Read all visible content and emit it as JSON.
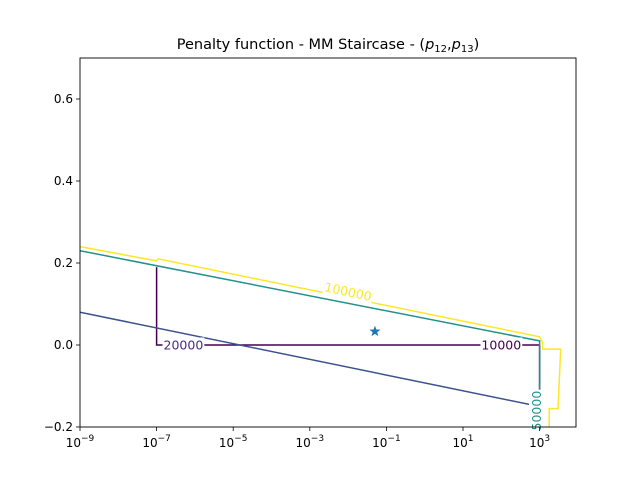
{
  "chart_data": {
    "type": "line",
    "subtype": "contour",
    "title": {
      "prefix": "Penalty function - MM Staircase - (",
      "var1": "p",
      "var1_sub": "12",
      "separator": ",",
      "var2": "p",
      "var2_sub": "13",
      "suffix": ")"
    },
    "xlabel": "",
    "ylabel": "",
    "xscale": "log",
    "xlim_exp": [
      -9,
      3.95
    ],
    "ylim": [
      -0.2,
      0.7
    ],
    "x_ticks": [
      {
        "base": "10",
        "exp": "−9",
        "value": -9
      },
      {
        "base": "10",
        "exp": "−7",
        "value": -7
      },
      {
        "base": "10",
        "exp": "−5",
        "value": -5
      },
      {
        "base": "10",
        "exp": "−3",
        "value": -3
      },
      {
        "base": "10",
        "exp": "−1",
        "value": -1
      },
      {
        "base": "10",
        "exp": "1",
        "value": 1
      },
      {
        "base": "10",
        "exp": "3",
        "value": 3
      }
    ],
    "y_ticks": [
      {
        "label": "−0.2",
        "value": -0.2
      },
      {
        "label": "0.0",
        "value": 0.0
      },
      {
        "label": "0.2",
        "value": 0.2
      },
      {
        "label": "0.4",
        "value": 0.4
      },
      {
        "label": "0.6",
        "value": 0.6
      }
    ],
    "series": [
      {
        "level": 10000,
        "color": "#440154",
        "points": [
          [
            -7,
            0.19
          ],
          [
            -7,
            0.0
          ],
          [
            -5.55,
            0.0
          ],
          [
            1.8,
            0.0
          ],
          [
            3,
            0.0
          ],
          [
            3,
            -0.2
          ]
        ]
      },
      {
        "level": 20000,
        "color": "#3b528b",
        "points": [
          [
            -9,
            0.08
          ],
          [
            3,
            -0.15
          ],
          [
            3,
            -0.2
          ]
        ]
      },
      {
        "level": 50000,
        "color": "#21918c",
        "points": [
          [
            -9,
            0.23
          ],
          [
            3,
            0.01
          ],
          [
            3,
            -0.2
          ]
        ]
      },
      {
        "level": 100000,
        "color": "#fde725",
        "points": [
          [
            -9,
            0.24
          ],
          [
            -7,
            0.205
          ],
          [
            -6.95,
            0.21
          ],
          [
            3,
            0.02
          ],
          [
            3.08,
            0.005
          ],
          [
            3.08,
            -0.01
          ],
          [
            3.55,
            -0.01
          ],
          [
            3.48,
            -0.155
          ],
          [
            3.25,
            -0.155
          ],
          [
            3.25,
            -0.2
          ]
        ]
      }
    ],
    "contour_labels": [
      {
        "text": "10000",
        "x": 2.0,
        "y": 0.0,
        "color": "#440154"
      },
      {
        "text": "20000",
        "x": -6.3,
        "y": 0.0,
        "color": "#472d7b"
      },
      {
        "text": "50000",
        "x": 2.92,
        "y": -0.16,
        "color": "#21918c",
        "rotate": -90
      },
      {
        "text": "100000",
        "x": -2.0,
        "y": 0.13,
        "color": "#fde725",
        "rotate": 12
      }
    ],
    "marker": {
      "x": -1.3,
      "y": 0.033,
      "symbol": "star",
      "color": "#1f77b4"
    }
  }
}
